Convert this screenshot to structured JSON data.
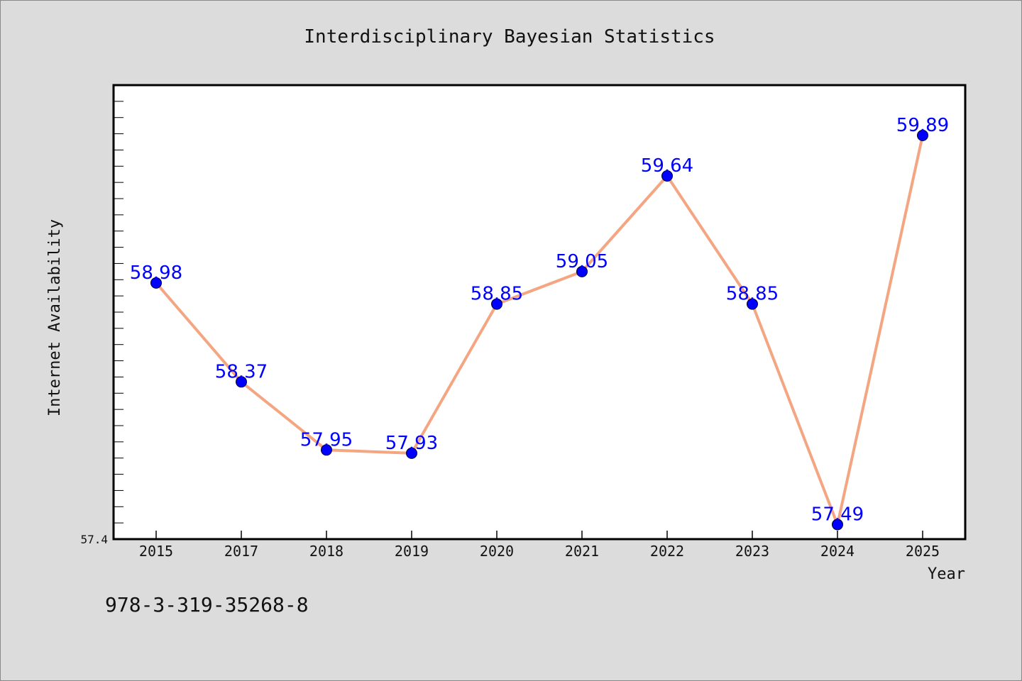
{
  "chart_data": {
    "type": "line",
    "title": "Interdisciplinary Bayesian Statistics",
    "xlabel": "Year",
    "ylabel": "Internet Availability",
    "categories": [
      "2015",
      "2017",
      "2018",
      "2019",
      "2020",
      "2021",
      "2022",
      "2023",
      "2024",
      "2025"
    ],
    "series": [
      {
        "values": [
          58.98,
          58.37,
          57.95,
          57.93,
          58.85,
          59.05,
          59.64,
          58.85,
          57.49,
          59.89
        ],
        "labels": [
          "58.98",
          "58.37",
          "57.95",
          "57.93",
          "58.85",
          "59.05",
          "59.64",
          "58.85",
          "57.49",
          "59.89"
        ]
      }
    ],
    "ylim": [
      57.4,
      60.2
    ],
    "y_min_label": "57.4",
    "grid": false,
    "colors": {
      "line": "#f4a582",
      "marker": "#0000ff",
      "data_label": "#0000ff",
      "background": "#dcdcdc",
      "plot_background": "#ffffff"
    }
  },
  "footer": {
    "isbn": "978-3-319-35268-8"
  }
}
